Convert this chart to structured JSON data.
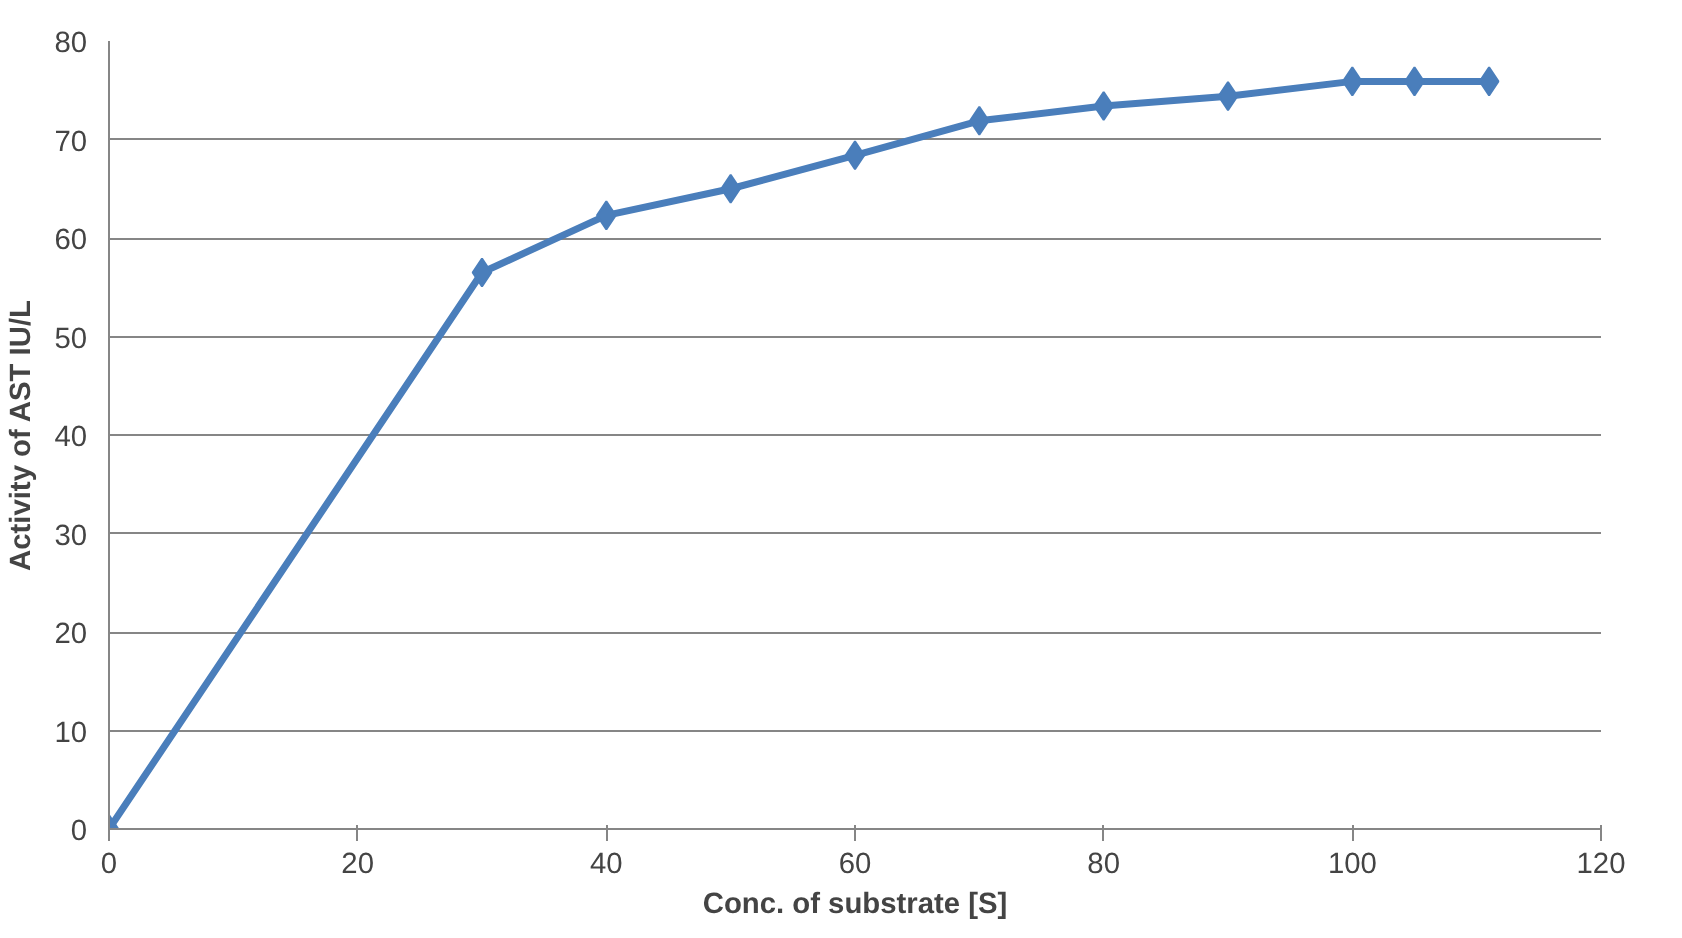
{
  "chart_data": {
    "type": "line",
    "xlabel": "Conc. of substrate [S]",
    "ylabel": "Activity of AST IU/L",
    "x": [
      0,
      30,
      40,
      50,
      60,
      70,
      80,
      90,
      100,
      105,
      111
    ],
    "series": [
      {
        "color": "#4a7ebb",
        "values": [
          0,
          56.5,
          62.3,
          65,
          68.4,
          71.9,
          73.4,
          74.4,
          75.9,
          75.9,
          75.9
        ]
      }
    ],
    "xlim": [
      0,
      120
    ],
    "xticks": [
      0,
      20,
      40,
      60,
      80,
      100,
      120
    ],
    "ylim": [
      0,
      80
    ],
    "yticks": [
      0,
      10,
      20,
      30,
      40,
      50,
      60,
      70,
      80
    ],
    "grid": "y",
    "marker": "diamond",
    "line_style": "solid"
  }
}
